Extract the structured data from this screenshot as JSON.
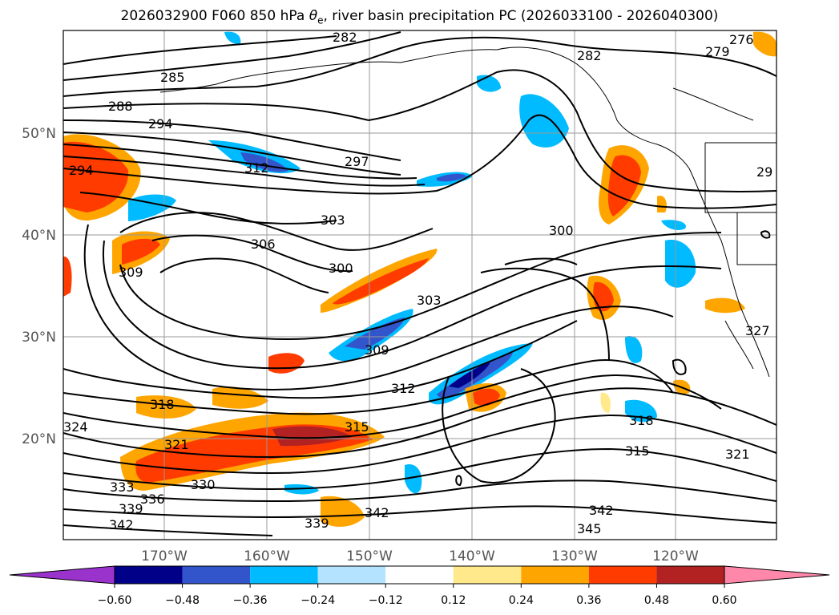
{
  "title": {
    "prefix": "2026032900 F060 850 hPa ",
    "symbol": "θ",
    "subscript": "e",
    "suffix": ", river basin precipitation PC (2026033100 - 2026040300)"
  },
  "axes": {
    "x_ticks": [
      "170°W",
      "160°W",
      "150°W",
      "140°W",
      "130°W",
      "120°W"
    ],
    "y_ticks": [
      "50°N",
      "40°N",
      "30°N",
      "20°N"
    ]
  },
  "colorbar": {
    "ticks": [
      "−0.60",
      "−0.48",
      "−0.36",
      "−0.24",
      "−0.12",
      "0.12",
      "0.24",
      "0.36",
      "0.48",
      "0.60"
    ],
    "colors": [
      "#9933cc",
      "#000088",
      "#3355cc",
      "#00bbff",
      "#b3e3ff",
      "#ffffff",
      "#ffe98a",
      "#ffa500",
      "#ff3b00",
      "#b22222",
      "#ff88aa"
    ]
  },
  "contour_labels": [
    "276",
    "279",
    "282",
    "282",
    "285",
    "288",
    "294",
    "294",
    "297",
    "29",
    "300",
    "300",
    "303",
    "303",
    "306",
    "309",
    "309",
    "312",
    "312",
    "315",
    "315",
    "318",
    "318",
    "321",
    "321",
    "324",
    "327",
    "330",
    "333",
    "336",
    "339",
    "339",
    "342",
    "342",
    "342",
    "345"
  ]
}
